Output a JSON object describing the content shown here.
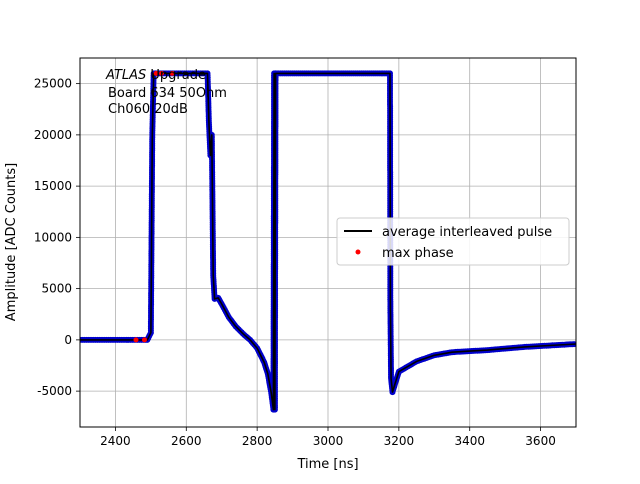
{
  "chart_data": {
    "type": "line",
    "xlabel": "Time [ns]",
    "ylabel": "Amplitude [ADC Counts]",
    "xlim": [
      2300,
      3700
    ],
    "ylim": [
      -8500,
      27500
    ],
    "xticks": [
      2400,
      2600,
      2800,
      3000,
      3200,
      3400,
      3600
    ],
    "yticks": [
      -5000,
      0,
      5000,
      10000,
      15000,
      20000,
      25000
    ],
    "grid": true,
    "legend_position": "center-right",
    "annotation": {
      "italic": "ATLAS",
      "italic_rest": " Upgrade",
      "line2": "Board 634 50Ohm",
      "line3": "Ch060 20dB"
    },
    "series": [
      {
        "name": "average interleaved pulse",
        "style": "line",
        "color": "#000000",
        "x": [
          2300,
          2480,
          2490,
          2500,
          2504,
          2508,
          2520,
          2560,
          2600,
          2640,
          2650,
          2660,
          2664,
          2668,
          2672,
          2676,
          2680,
          2690,
          2700,
          2720,
          2740,
          2760,
          2780,
          2800,
          2820,
          2830,
          2840,
          2846,
          2848,
          2850,
          2852,
          2852,
          2860,
          2900,
          2950,
          3000,
          3050,
          3100,
          3150,
          3175,
          3176,
          3178,
          3182,
          3190,
          3200,
          3250,
          3300,
          3350,
          3400,
          3450,
          3500,
          3550,
          3600,
          3650,
          3700
        ],
        "y": [
          0,
          0,
          0,
          700,
          20000,
          26000,
          26000,
          26000,
          26000,
          26000,
          26000,
          26000,
          21000,
          18000,
          20000,
          6300,
          4000,
          4100,
          3500,
          2200,
          1300,
          600,
          0,
          -800,
          -2200,
          -3300,
          -5200,
          -6800,
          26000,
          -6800,
          26000,
          26000,
          26000,
          26000,
          26000,
          26000,
          26000,
          26000,
          26000,
          26000,
          3500,
          -3800,
          -5100,
          -4200,
          -3100,
          -2100,
          -1500,
          -1200,
          -1100,
          -1000,
          -850,
          -700,
          -600,
          -500,
          -400
        ]
      },
      {
        "name": "max phase",
        "style": "scatter",
        "color": "#ff0000",
        "x": [
          2458,
          2482,
          2515,
          2530,
          2560
        ],
        "y": [
          0,
          0,
          26000,
          26000,
          26000
        ]
      }
    ]
  }
}
